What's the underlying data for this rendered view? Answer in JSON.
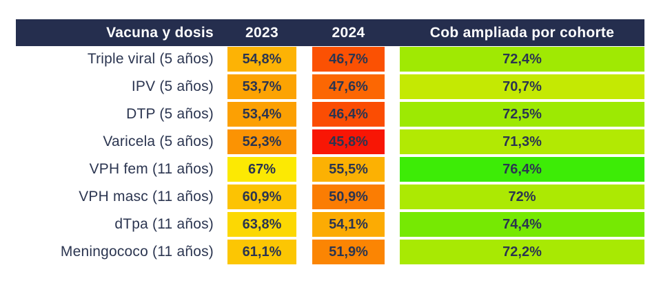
{
  "header": {
    "col_vaccine": "Vacuna y dosis",
    "col_2023": "2023",
    "col_2024": "2024",
    "col_cob": "Cob ampliada por cohorte"
  },
  "colors": {
    "header_bg": "#252E4E",
    "header_text": "#FFFFFF",
    "body_text": "#2B3550",
    "page_bg": "#FFFFFF"
  },
  "rows": [
    {
      "label": "Triple viral (5 años)",
      "v2023": "54,8%",
      "c2023": "#FDB305",
      "v2024": "46,7%",
      "c2024": "#FB5103",
      "vcob": "72,4%",
      "ccob": "#A0E903"
    },
    {
      "label": "IPV (5 años)",
      "v2023": "53,7%",
      "c2023": "#FCA303",
      "v2024": "47,6%",
      "c2024": "#FC6703",
      "vcob": "70,7%",
      "ccob": "#C4E903"
    },
    {
      "label": "DTP (5 años)",
      "v2023": "53,4%",
      "c2023": "#FCA003",
      "v2024": "46,4%",
      "c2024": "#FB4D03",
      "vcob": "72,5%",
      "ccob": "#9DE903"
    },
    {
      "label": "Varicela (5 años)",
      "v2023": "52,3%",
      "c2023": "#FB9303",
      "v2024": "45,8%",
      "c2024": "#F81605",
      "vcob": "71,3%",
      "ccob": "#B2E903"
    },
    {
      "label": "VPH fem (11 años)",
      "v2023": "67%",
      "c2023": "#FCE903",
      "v2024": "55,5%",
      "c2024": "#FCB103",
      "vcob": "76,4%",
      "ccob": "#3DEC06"
    },
    {
      "label": "VPH masc (11 años)",
      "v2023": "60,9%",
      "c2023": "#FCC303",
      "v2024": "50,9%",
      "c2024": "#FB7D03",
      "vcob": "72%",
      "ccob": "#ACE903"
    },
    {
      "label": "dTpa (11 años)",
      "v2023": "63,8%",
      "c2023": "#FCD803",
      "v2024": "54,1%",
      "c2024": "#FCAB03",
      "vcob": "74,4%",
      "ccob": "#76E903"
    },
    {
      "label": "Meningococo (11 años)",
      "v2023": "61,1%",
      "c2023": "#FCC603",
      "v2024": "51,9%",
      "c2024": "#FB8503",
      "vcob": "72,2%",
      "ccob": "#A8E903"
    }
  ],
  "chart_data": {
    "type": "heatmap",
    "title": "",
    "categories": [
      "Triple viral (5 años)",
      "IPV (5 años)",
      "DTP (5 años)",
      "Varicela (5 años)",
      "VPH fem (11 años)",
      "VPH masc (11 años)",
      "dTpa (11 años)",
      "Meningococo (11 años)"
    ],
    "series": [
      {
        "name": "2023",
        "values": [
          54.8,
          53.7,
          53.4,
          52.3,
          67.0,
          60.9,
          63.8,
          61.1
        ]
      },
      {
        "name": "2024",
        "values": [
          46.7,
          47.6,
          46.4,
          45.8,
          55.5,
          50.9,
          54.1,
          51.9
        ]
      },
      {
        "name": "Cob ampliada por cohorte",
        "values": [
          72.4,
          70.7,
          72.5,
          71.3,
          76.4,
          72.0,
          74.4,
          72.2
        ]
      }
    ],
    "value_unit": "%",
    "decimal_separator": ",",
    "color_scale": "red-yellow-green, low values red (~45.8) through yellow/orange (~55-67) to green (~76.4)",
    "layout": "table with row labels right-aligned, dark navy header band, white gaps between cells"
  }
}
